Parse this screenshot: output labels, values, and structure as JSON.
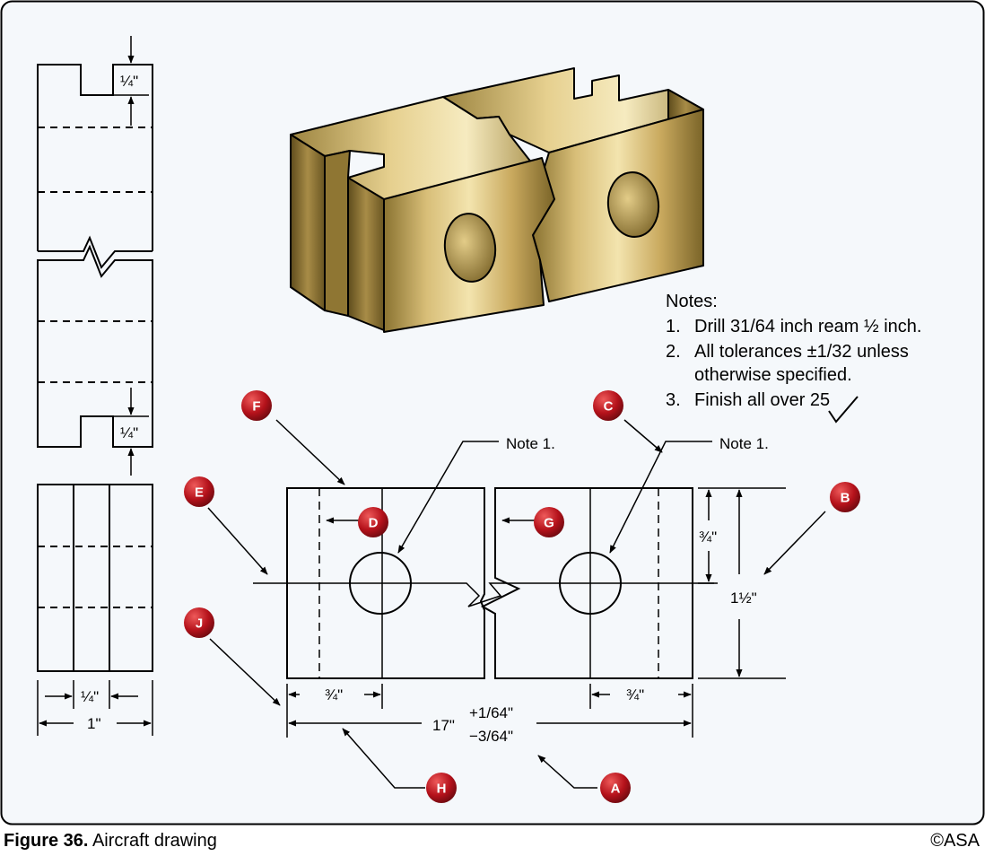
{
  "caption": {
    "figure_number": "Figure 36.",
    "title": "Aircraft drawing"
  },
  "copyright": "©ASA",
  "notes": {
    "heading": "Notes:",
    "items": [
      {
        "number": "1.",
        "line1": "Drill 31/64 inch ream ½  inch.",
        "line2": ""
      },
      {
        "number": "2.",
        "line1": "All tolerances ±1/32 unless",
        "line2": "otherwise specified."
      },
      {
        "number": "3.",
        "line1": "Finish all over 25",
        "line2": ""
      }
    ]
  },
  "leaders": {
    "note_left": "Note 1.",
    "note_right": "Note 1."
  },
  "callouts": [
    "A",
    "B",
    "C",
    "D",
    "E",
    "F",
    "G",
    "H",
    "J"
  ],
  "dimensions": {
    "side_top_slot": "¼\"",
    "side_bottom_slot": "¼\"",
    "end_inner": "¼\"",
    "end_outer": "1\"",
    "front_left_hole": "¾\"",
    "front_right_hole": "¾\"",
    "front_vertical_half": "¾\"",
    "front_height": "1½\"",
    "overall_length": "17\"",
    "tol_plus": "+1/64\"",
    "tol_minus": "−3/64\""
  },
  "colors": {
    "background": "#f5f8fb",
    "callout": "#b5121b",
    "body": "#c9a95e",
    "outline": "#000000"
  }
}
